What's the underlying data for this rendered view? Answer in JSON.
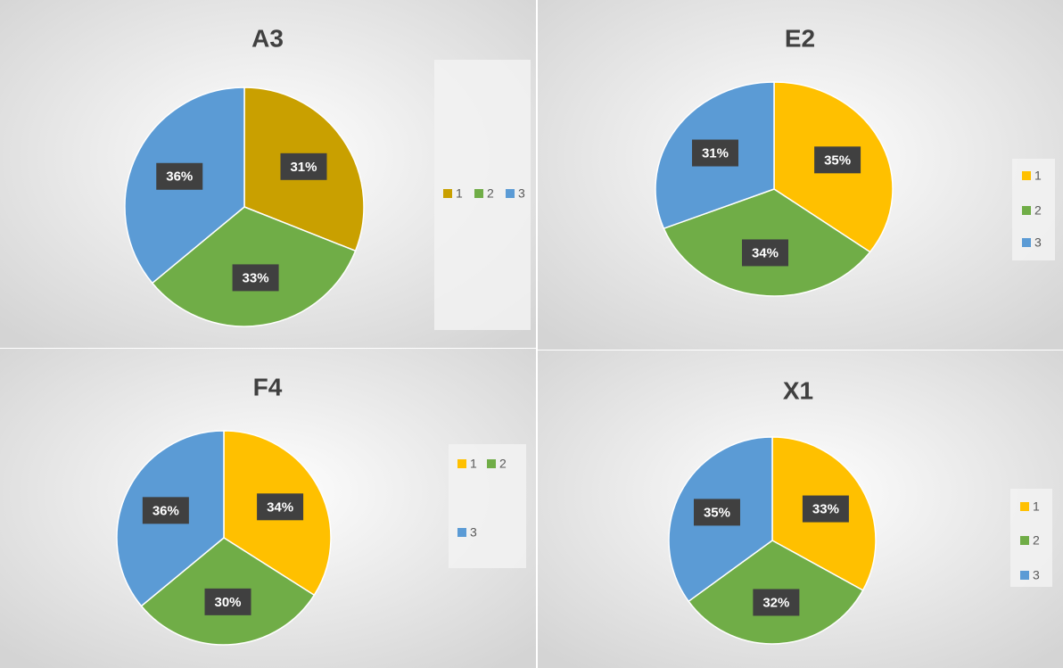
{
  "chart_data": [
    {
      "type": "pie",
      "title": "A3",
      "categories": [
        "1",
        "2",
        "3"
      ],
      "values": [
        31,
        33,
        36
      ],
      "value_labels": [
        "31%",
        "33%",
        "36%"
      ],
      "colors": [
        "#c9a000",
        "#70ad47",
        "#5b9bd5"
      ],
      "legend": "right"
    },
    {
      "type": "pie",
      "title": "E2",
      "categories": [
        "1",
        "2",
        "3"
      ],
      "values": [
        35,
        34,
        31
      ],
      "value_labels": [
        "35%",
        "34%",
        "31%"
      ],
      "colors": [
        "#ffc000",
        "#70ad47",
        "#5b9bd5"
      ],
      "legend": "right"
    },
    {
      "type": "pie",
      "title": "F4",
      "categories": [
        "1",
        "2",
        "3"
      ],
      "values": [
        34,
        30,
        36
      ],
      "value_labels": [
        "34%",
        "30%",
        "36%"
      ],
      "colors": [
        "#ffc000",
        "#70ad47",
        "#5b9bd5"
      ],
      "legend": "right"
    },
    {
      "type": "pie",
      "title": "X1",
      "categories": [
        "1",
        "2",
        "3"
      ],
      "values": [
        33,
        32,
        35
      ],
      "value_labels": [
        "33%",
        "32%",
        "35%"
      ],
      "colors": [
        "#ffc000",
        "#70ad47",
        "#5b9bd5"
      ],
      "legend": "right"
    }
  ]
}
